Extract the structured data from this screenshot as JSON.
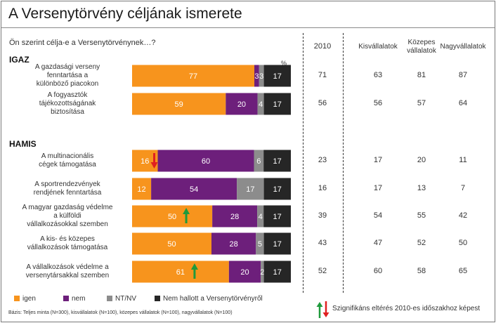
{
  "header": {
    "title": "A Versenytörvény céljának ismerete",
    "question": "Ön szerint célja-e a Versenytörvénynek…?",
    "percent_sign": "%"
  },
  "sections": {
    "igaz": "IGAZ",
    "hamis": "HAMIS"
  },
  "columns": [
    "2010",
    "Kisvállalatok",
    "Közepes vállalatok",
    "Nagyvállalatok"
  ],
  "legend": {
    "igen": "igen",
    "nem": "nem",
    "ntnv": "NT/NV",
    "nemhallott": "Nem hallott a Versenytörvényről"
  },
  "footnote": "Bázis: Teljes minta (N=300), kisvállalatok (N=100), közepes vállalatok (N=100), nagyvállalatok (N=100)",
  "significance_note": "Szignifikáns eltérés 2010-es időszakhoz képest",
  "colors": {
    "igen": "#f7941d",
    "nem": "#6d1f7b",
    "ntnv": "#8c8c8c",
    "nemhallott": "#262626",
    "arrow_up": "#1f9a3c",
    "arrow_down": "#e02020"
  },
  "chart_data": {
    "type": "bar",
    "stacked": true,
    "orientation": "horizontal",
    "unit": "%",
    "categories": [
      "A gazdasági verseny fenntartása a különböző piacokon",
      "A fogyasztók tájékozottságának biztosítása",
      "A multinacionális cégek támogatása",
      "A sportrendezvények rendjének fenntartása",
      "A magyar gazdaság védelme a külföldi vállalkozásokkal szemben",
      "A kis- és közepes vállalkozások támogatása",
      "A vállalkozások védelme a versenytársakkal szemben"
    ],
    "series": [
      {
        "name": "igen",
        "values": [
          77,
          59,
          16,
          12,
          50,
          50,
          61
        ]
      },
      {
        "name": "nem",
        "values": [
          3,
          20,
          60,
          54,
          28,
          28,
          20
        ]
      },
      {
        "name": "NT/NV",
        "values": [
          3,
          4,
          6,
          17,
          4,
          5,
          2
        ]
      },
      {
        "name": "Nem hallott a Versenytörvényről",
        "values": [
          17,
          17,
          17,
          17,
          17,
          17,
          17
        ]
      }
    ],
    "significance": [
      {
        "row": 2,
        "series": "igen",
        "direction": "down"
      },
      {
        "row": 4,
        "series": "igen",
        "direction": "up"
      },
      {
        "row": 6,
        "series": "igen",
        "direction": "up"
      }
    ],
    "table": {
      "2010": [
        71,
        56,
        23,
        16,
        39,
        43,
        52
      ],
      "Kisvállalatok": [
        63,
        56,
        17,
        17,
        54,
        47,
        60
      ],
      "Közepes vállalatok": [
        81,
        57,
        20,
        13,
        55,
        52,
        58
      ],
      "Nagyvállalatok": [
        87,
        64,
        11,
        7,
        42,
        50,
        65
      ]
    }
  }
}
